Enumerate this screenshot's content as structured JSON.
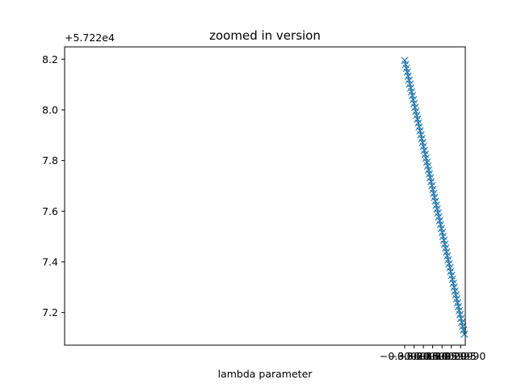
{
  "chart_data": {
    "type": "line",
    "title": "zoomed in version",
    "xlabel": "lambda parameter",
    "ylabel": "",
    "y_offset_label": "+5.722e4",
    "xlim": [
      -0.302025,
      -0.299875
    ],
    "ylim": [
      7.0712,
      8.2488
    ],
    "x_ticks": [
      -0.3002,
      -0.30015,
      -0.3001,
      -0.30005,
      -0.3,
      -0.29995,
      -0.2999
    ],
    "x_tick_labels": [
      "−0.30020",
      "−0.30015",
      "−0.30010",
      "−0.30005",
      "−0.30000",
      "−0.29995",
      "−0.29990"
    ],
    "y_ticks": [
      7.2,
      7.4,
      7.6,
      7.8,
      8.0,
      8.2
    ],
    "y_tick_labels": [
      "7.2",
      "7.4",
      "7.6",
      "7.8",
      "8.0",
      "8.2"
    ],
    "grid": false,
    "series": [
      {
        "marker": "x",
        "color": "#1f77b4",
        "x_start": -0.3002,
        "x_end": -0.29988,
        "num_points": 71,
        "y_start": 8.195,
        "y_end": 7.115
      }
    ]
  }
}
